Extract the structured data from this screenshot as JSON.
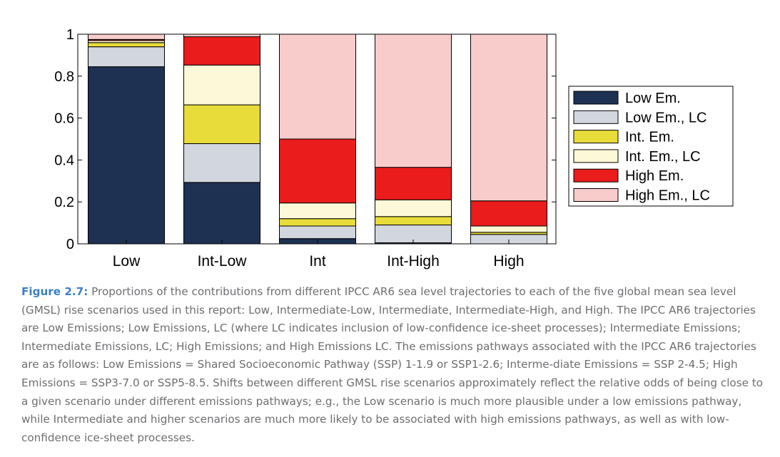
{
  "chart_data": {
    "type": "bar",
    "stacked": true,
    "categories": [
      "Low",
      "Int-Low",
      "Int",
      "Int-High",
      "High"
    ],
    "ylim": [
      0,
      1
    ],
    "yticks": [
      0,
      0.2,
      0.4,
      0.6,
      0.8,
      1
    ],
    "ytick_labels": [
      "0",
      "0.2",
      "0.4",
      "0.6",
      "0.8",
      "1"
    ],
    "legend_position": "right",
    "series": [
      {
        "name": "Low Em.",
        "color": "#1e3153",
        "values": [
          0.845,
          0.293,
          0.025,
          0.005,
          0.0
        ]
      },
      {
        "name": "Low Em., LC",
        "color": "#d2d6de",
        "values": [
          0.095,
          0.185,
          0.06,
          0.085,
          0.045
        ]
      },
      {
        "name": "Int. Em.",
        "color": "#e8dc3a",
        "values": [
          0.02,
          0.185,
          0.035,
          0.04,
          0.01
        ]
      },
      {
        "name": "Int. Em., LC",
        "color": "#fdf8d8",
        "values": [
          0.01,
          0.19,
          0.075,
          0.08,
          0.03
        ]
      },
      {
        "name": "High Em.",
        "color": "#eb1c1c",
        "values": [
          0.005,
          0.135,
          0.305,
          0.155,
          0.12
        ]
      },
      {
        "name": "High Em., LC",
        "color": "#f9cccc",
        "values": [
          0.025,
          0.012,
          0.5,
          0.635,
          0.795
        ]
      }
    ]
  },
  "caption": {
    "label": "Figure 2.7:",
    "text": " Proportions of the contributions from different IPCC AR6 sea level trajectories to each of the five global mean sea level (GMSL) rise scenarios used in this report: Low, Intermediate-Low, Intermediate, Intermediate-High, and High. The IPCC AR6 trajectories are Low Emissions; Low Emissions, LC (where LC indicates inclusion of low-confidence ice-sheet processes); Intermediate Emissions; Intermediate Emissions, LC; High Emissions; and High Emissions LC. The emissions pathways associated with the IPCC AR6 trajectories are as follows: Low Emissions = Shared Socioeconomic Pathway (SSP) 1-1.9 or SSP1-2.6; Interme-diate Emissions = SSP 2-4.5; High Emissions = SSP3-7.0 or SSP5-8.5. Shifts between different GMSL rise scenarios approximately reflect the relative odds of being close to a given scenario under different emissions pathways; e.g., the Low scenario is much more plausible under a low emissions pathway, while Intermediate and higher scenarios are much more likely to be associated with high emissions pathways, as well as with low-confidence ice-sheet processes."
  }
}
